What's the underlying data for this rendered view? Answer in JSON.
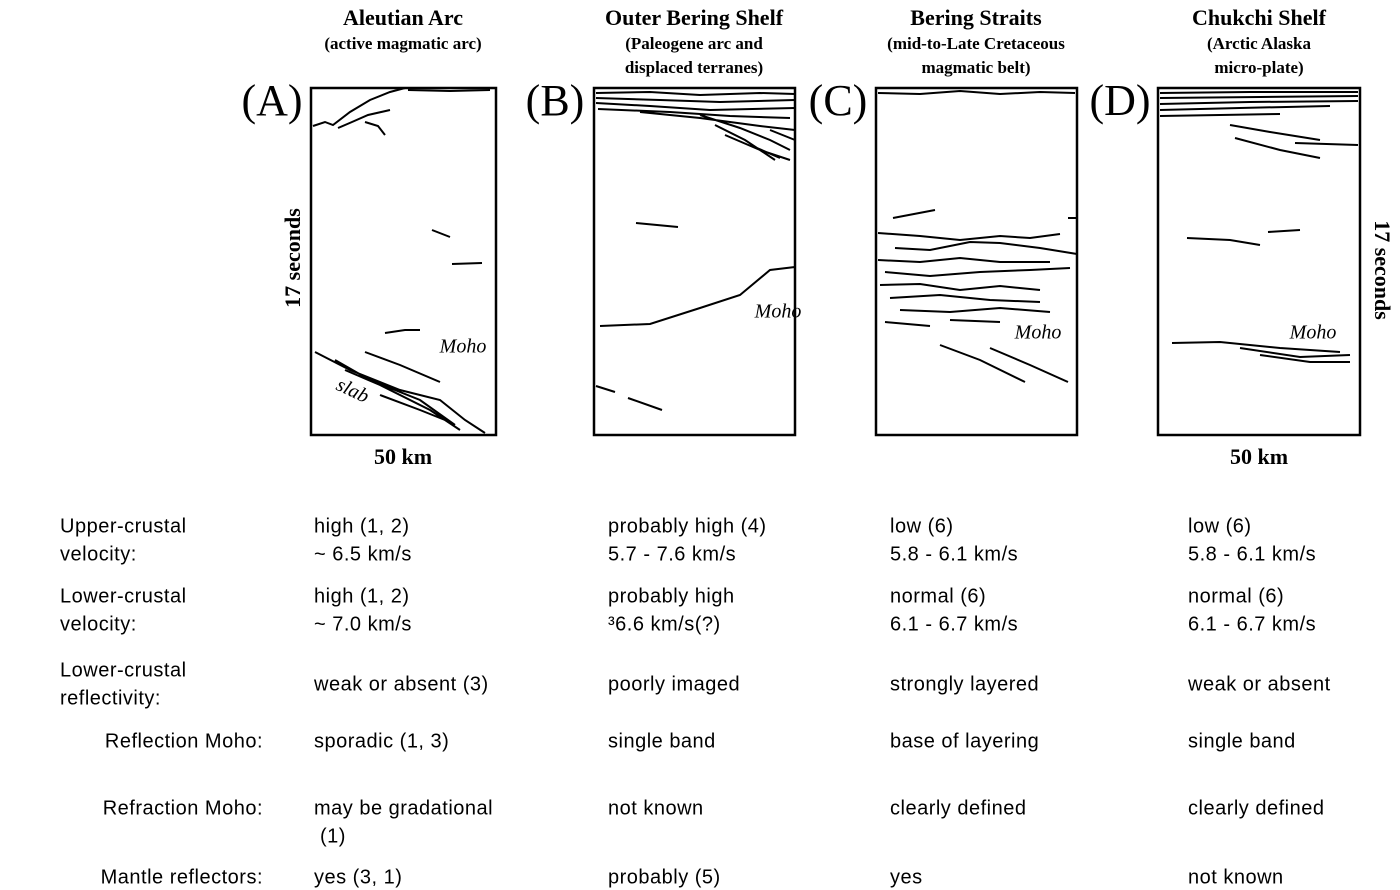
{
  "panels": [
    {
      "letter": "(A)",
      "title": "Aleutian Arc",
      "subtitle": [
        "(active magmatic arc)"
      ],
      "annotations": [
        "Moho",
        "slab"
      ]
    },
    {
      "letter": "(B)",
      "title": "Outer Bering Shelf",
      "subtitle": [
        "(Paleogene arc and",
        "displaced terranes)"
      ],
      "annotations": [
        "Moho"
      ]
    },
    {
      "letter": "(C)",
      "title": "Bering Straits",
      "subtitle": [
        "(mid-to-Late Cretaceous",
        "magmatic belt)"
      ],
      "annotations": [
        "Moho"
      ]
    },
    {
      "letter": "(D)",
      "title": "Chukchi Shelf",
      "subtitle": [
        "(Arctic Alaska",
        "micro-plate)"
      ],
      "annotations": [
        "Moho"
      ]
    }
  ],
  "axis_labels": {
    "left_time": "17 seconds",
    "right_time": "17 seconds",
    "left_scale": "50 km",
    "right_scale": "50 km"
  },
  "table": {
    "rows": [
      {
        "label": [
          "Upper-crustal",
          "velocity:"
        ],
        "cells": [
          [
            "high (1, 2)",
            "~ 6.5 km/s"
          ],
          [
            "probably high (4)",
            "5.7 - 7.6 km/s"
          ],
          [
            "low (6)",
            "5.8 - 6.1 km/s"
          ],
          [
            "low (6)",
            "5.8 - 6.1 km/s"
          ]
        ]
      },
      {
        "label": [
          "Lower-crustal",
          "velocity:"
        ],
        "cells": [
          [
            "high (1, 2)",
            "~ 7.0 km/s"
          ],
          [
            "probably high",
            "³6.6 km/s(?)"
          ],
          [
            "normal (6)",
            "6.1 - 6.7 km/s"
          ],
          [
            "normal (6)",
            "6.1 - 6.7 km/s"
          ]
        ]
      },
      {
        "label": [
          "Lower-crustal",
          "reflectivity:"
        ],
        "cells": [
          [
            "weak or absent (3)"
          ],
          [
            "poorly imaged"
          ],
          [
            "strongly layered"
          ],
          [
            "weak or absent"
          ]
        ]
      },
      {
        "label": [
          "Reflection Moho:"
        ],
        "cells": [
          [
            "sporadic (1, 3)"
          ],
          [
            "single band"
          ],
          [
            "base of layering"
          ],
          [
            "single band"
          ]
        ]
      },
      {
        "label": [
          "Refraction Moho:"
        ],
        "cells": [
          [
            "may be gradational",
            "(1)"
          ],
          [
            "not known"
          ],
          [
            "clearly defined"
          ],
          [
            "clearly defined"
          ]
        ]
      },
      {
        "label": [
          "Mantle reflectors:"
        ],
        "cells": [
          [
            "yes (3, 1)"
          ],
          [
            "probably (5)"
          ],
          [
            "yes"
          ],
          [
            "not known"
          ]
        ]
      }
    ]
  }
}
